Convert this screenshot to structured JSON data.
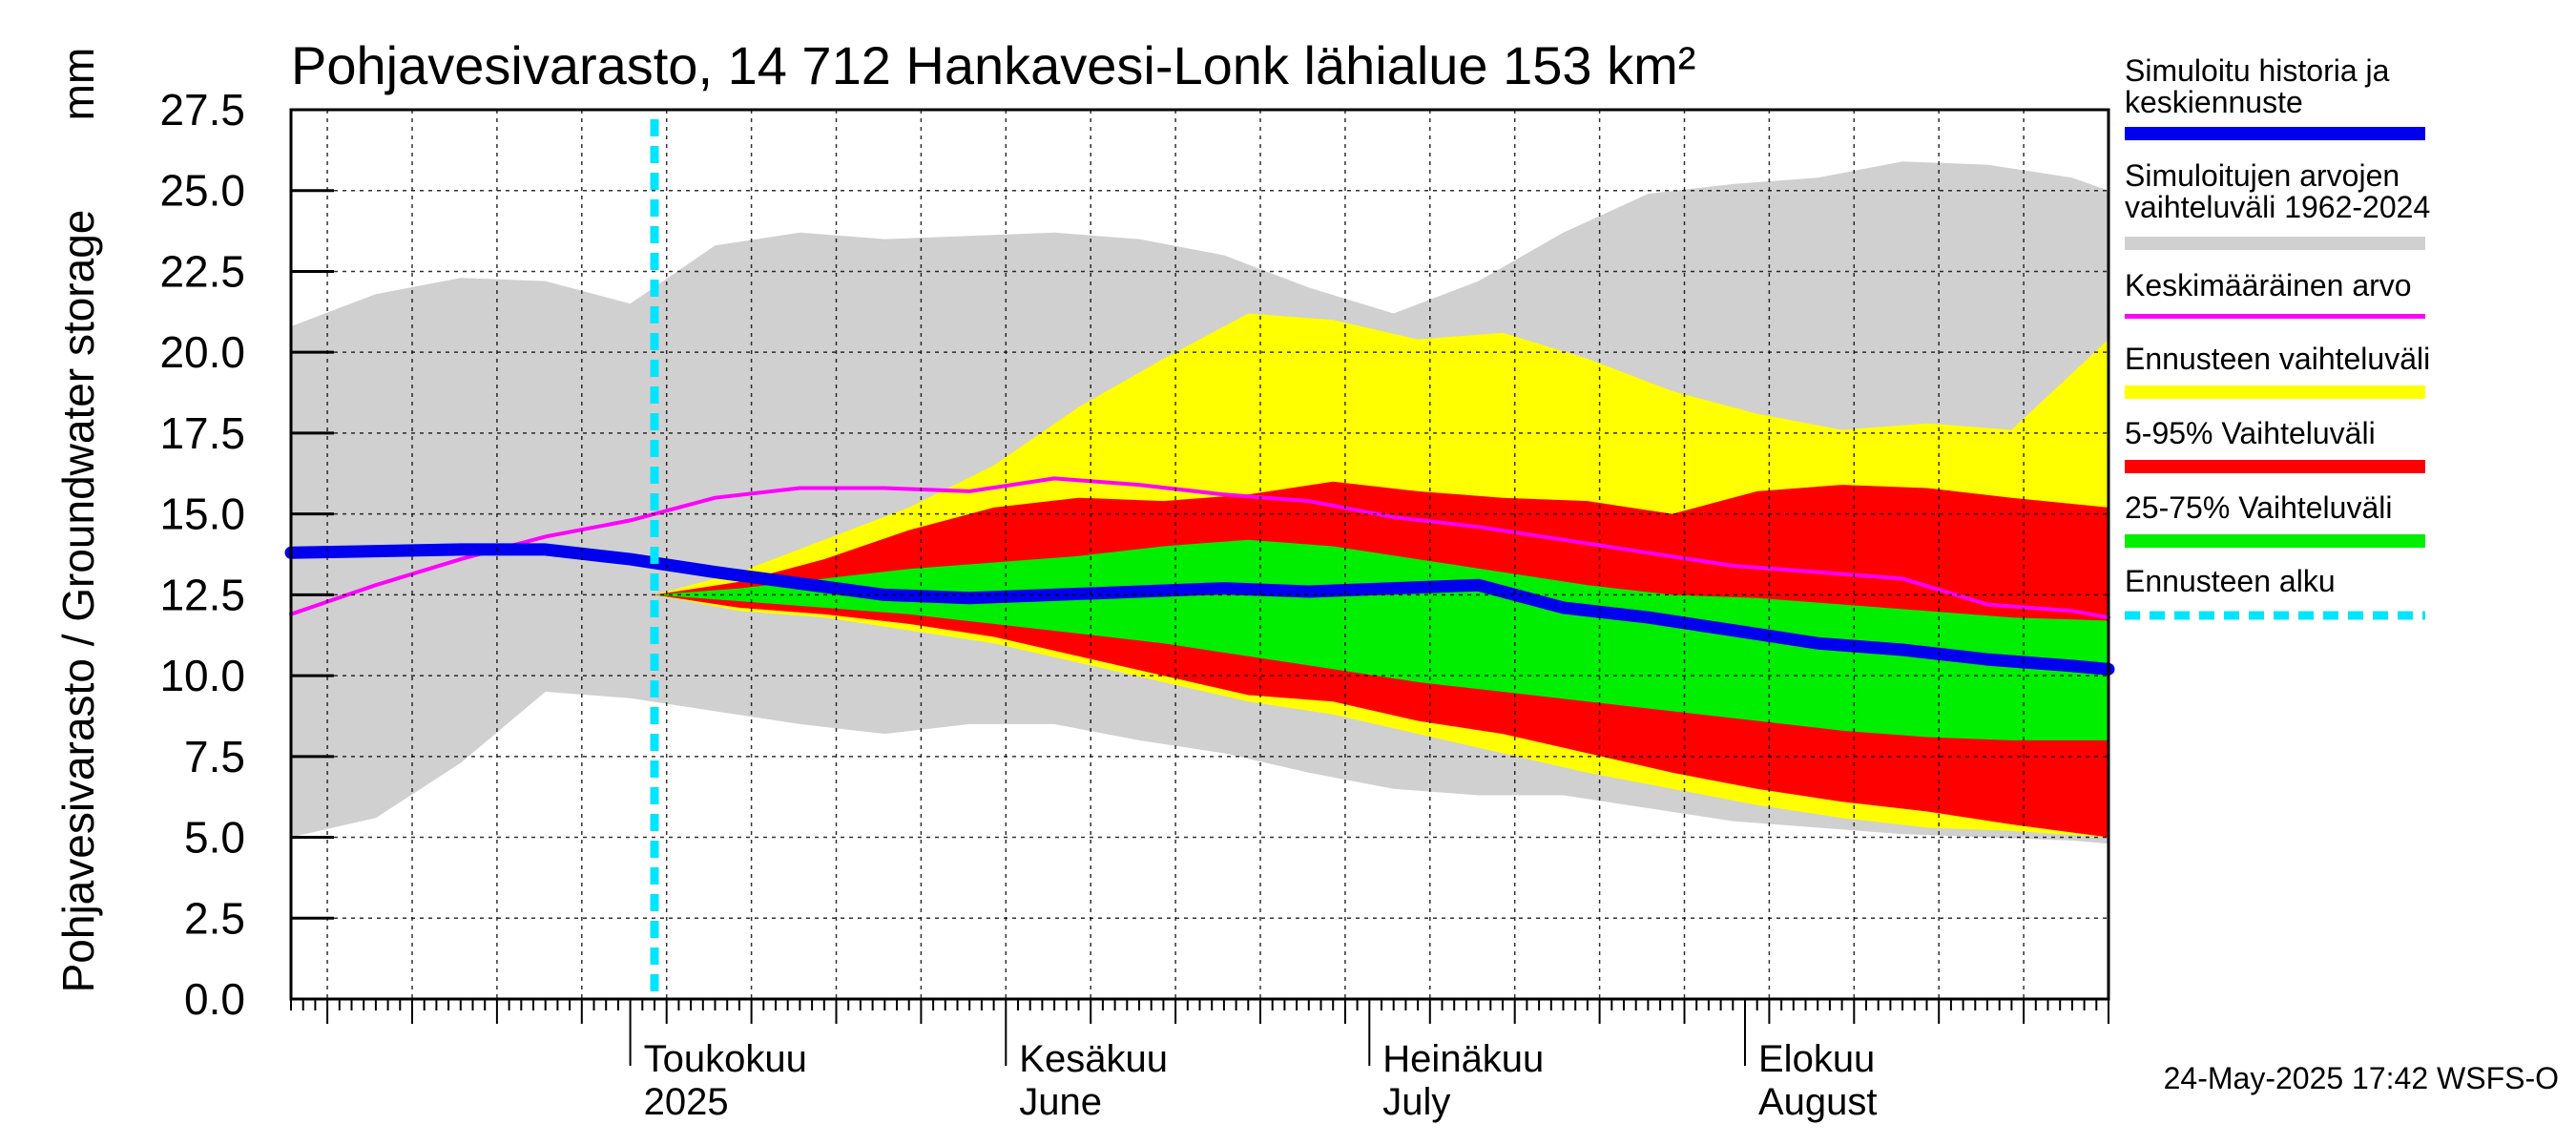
{
  "chart_data": {
    "type": "area",
    "title": "Pohjavesivarasto, 14 712 Hankavesi-Lonk lähialue 153 km²",
    "ylabel": "Pohjavesivarasto / Groundwater storage",
    "yunit": "mm",
    "ylim": [
      0,
      27.5
    ],
    "yticks": [
      "0.0",
      "2.5",
      "5.0",
      "7.5",
      "10.0",
      "12.5",
      "15.0",
      "17.5",
      "20.0",
      "22.5",
      "25.0",
      "27.5"
    ],
    "x_start": "2025-04-03",
    "x_end": "2025-08-31",
    "grid": true,
    "legend_position": "right",
    "month_labels": [
      {
        "date": "2025-05-01",
        "line1": "Toukokuu",
        "line2": "2025"
      },
      {
        "date": "2025-06-01",
        "line1": "Kesäkuu",
        "line2": "June"
      },
      {
        "date": "2025-07-01",
        "line1": "Heinäkuu",
        "line2": "July"
      },
      {
        "date": "2025-08-01",
        "line1": "Elokuu",
        "line2": "August"
      }
    ],
    "forecast_start": "2025-05-03",
    "series": [
      {
        "name": "Simuloitujen arvojen vaihteluväli 1962-2024",
        "color": "#d0d0d0",
        "x": [
          "2025-04-03",
          "2025-04-10",
          "2025-04-17",
          "2025-04-24",
          "2025-05-01",
          "2025-05-08",
          "2025-05-15",
          "2025-05-22",
          "2025-05-29",
          "2025-06-05",
          "2025-06-12",
          "2025-06-19",
          "2025-06-26",
          "2025-07-03",
          "2025-07-10",
          "2025-07-17",
          "2025-07-24",
          "2025-07-31",
          "2025-08-07",
          "2025-08-14",
          "2025-08-21",
          "2025-08-28",
          "2025-08-31"
        ],
        "upper": [
          20.8,
          21.8,
          22.3,
          22.2,
          21.5,
          23.3,
          23.7,
          23.5,
          23.6,
          23.7,
          23.5,
          23.0,
          22.0,
          21.2,
          22.2,
          23.7,
          24.9,
          25.2,
          25.4,
          25.9,
          25.8,
          25.4,
          25.0
        ],
        "lower": [
          5.0,
          5.6,
          7.3,
          9.5,
          9.3,
          8.9,
          8.5,
          8.2,
          8.5,
          8.5,
          8.0,
          7.6,
          7.0,
          6.5,
          6.3,
          6.3,
          5.9,
          5.5,
          5.3,
          5.1,
          5.0,
          4.9,
          4.8
        ]
      },
      {
        "name": "Ennusteen vaihteluväli",
        "color": "#ffff00",
        "x": [
          "2025-05-03",
          "2025-05-10",
          "2025-05-17",
          "2025-05-24",
          "2025-05-31",
          "2025-06-07",
          "2025-06-14",
          "2025-06-21",
          "2025-06-28",
          "2025-07-05",
          "2025-07-12",
          "2025-07-19",
          "2025-07-26",
          "2025-08-02",
          "2025-08-09",
          "2025-08-16",
          "2025-08-23",
          "2025-08-31"
        ],
        "upper": [
          12.5,
          13.2,
          14.2,
          15.2,
          16.5,
          18.3,
          19.8,
          21.2,
          21.0,
          20.4,
          20.6,
          19.8,
          18.8,
          18.1,
          17.6,
          17.8,
          17.6,
          20.4
        ],
        "lower": [
          12.5,
          12.0,
          11.8,
          11.4,
          11.0,
          10.4,
          9.8,
          9.2,
          8.8,
          8.2,
          7.6,
          7.0,
          6.5,
          6.0,
          5.6,
          5.3,
          5.2,
          5.0
        ]
      },
      {
        "name": "5-95% Vaihteluväli",
        "color": "#ff0000",
        "x": [
          "2025-05-03",
          "2025-05-10",
          "2025-05-17",
          "2025-05-24",
          "2025-05-31",
          "2025-06-07",
          "2025-06-14",
          "2025-06-21",
          "2025-06-28",
          "2025-07-05",
          "2025-07-12",
          "2025-07-19",
          "2025-07-26",
          "2025-08-02",
          "2025-08-09",
          "2025-08-16",
          "2025-08-23",
          "2025-08-31"
        ],
        "upper": [
          12.5,
          12.9,
          13.6,
          14.5,
          15.2,
          15.5,
          15.4,
          15.6,
          16.0,
          15.7,
          15.5,
          15.4,
          15.0,
          15.7,
          15.9,
          15.8,
          15.5,
          15.2
        ],
        "lower": [
          12.5,
          12.1,
          11.9,
          11.6,
          11.2,
          10.6,
          10.0,
          9.4,
          9.2,
          8.6,
          8.2,
          7.6,
          7.0,
          6.5,
          6.1,
          5.8,
          5.4,
          5.0
        ]
      },
      {
        "name": "25-75% Vaihteluväli",
        "color": "#00ee00",
        "x": [
          "2025-05-03",
          "2025-05-10",
          "2025-05-17",
          "2025-05-24",
          "2025-05-31",
          "2025-06-07",
          "2025-06-14",
          "2025-06-21",
          "2025-06-28",
          "2025-07-05",
          "2025-07-12",
          "2025-07-19",
          "2025-07-26",
          "2025-08-02",
          "2025-08-09",
          "2025-08-16",
          "2025-08-23",
          "2025-08-31"
        ],
        "upper": [
          12.5,
          12.7,
          13.0,
          13.3,
          13.5,
          13.7,
          14.0,
          14.2,
          14.0,
          13.6,
          13.2,
          12.8,
          12.5,
          12.4,
          12.2,
          12.0,
          11.8,
          11.7
        ],
        "lower": [
          12.5,
          12.3,
          12.1,
          11.9,
          11.6,
          11.3,
          11.0,
          10.6,
          10.2,
          9.8,
          9.5,
          9.2,
          8.9,
          8.6,
          8.3,
          8.1,
          8.0,
          8.0
        ]
      },
      {
        "name": "Keskimääräinen arvo",
        "color": "#ff00ff",
        "x": [
          "2025-04-03",
          "2025-04-10",
          "2025-04-17",
          "2025-04-24",
          "2025-05-01",
          "2025-05-08",
          "2025-05-15",
          "2025-05-22",
          "2025-05-29",
          "2025-06-05",
          "2025-06-12",
          "2025-06-19",
          "2025-06-26",
          "2025-07-03",
          "2025-07-10",
          "2025-07-17",
          "2025-07-24",
          "2025-07-31",
          "2025-08-07",
          "2025-08-14",
          "2025-08-21",
          "2025-08-28",
          "2025-08-31"
        ],
        "values": [
          11.9,
          12.8,
          13.6,
          14.3,
          14.8,
          15.5,
          15.8,
          15.8,
          15.7,
          16.1,
          15.9,
          15.6,
          15.4,
          14.9,
          14.6,
          14.2,
          13.8,
          13.4,
          13.2,
          13.0,
          12.2,
          12.0,
          11.8
        ]
      },
      {
        "name": "Simuloitu historia ja keskiennuste",
        "color": "#0000ee",
        "x": [
          "2025-04-03",
          "2025-04-10",
          "2025-04-17",
          "2025-04-24",
          "2025-05-01",
          "2025-05-08",
          "2025-05-15",
          "2025-05-22",
          "2025-05-29",
          "2025-06-05",
          "2025-06-12",
          "2025-06-19",
          "2025-06-26",
          "2025-07-03",
          "2025-07-10",
          "2025-07-17",
          "2025-07-24",
          "2025-07-31",
          "2025-08-07",
          "2025-08-14",
          "2025-08-21",
          "2025-08-28",
          "2025-08-31"
        ],
        "values": [
          13.8,
          13.85,
          13.9,
          13.9,
          13.6,
          13.2,
          12.85,
          12.5,
          12.4,
          12.5,
          12.6,
          12.7,
          12.6,
          12.7,
          12.8,
          12.1,
          11.8,
          11.4,
          11.0,
          10.8,
          10.5,
          10.3,
          10.2
        ]
      }
    ],
    "legend": [
      {
        "label": "Simuloitu historia ja keskiennuste",
        "color": "#0000ee"
      },
      {
        "label": "Simuloitujen arvojen vaihteluväli 1962-2024",
        "color": "#d0d0d0"
      },
      {
        "label": "Keskimääräinen arvo",
        "color": "#ff00ff"
      },
      {
        "label": "Ennusteen vaihteluväli",
        "color": "#ffff00"
      },
      {
        "label": "5-95% Vaihteluväli",
        "color": "#ff0000"
      },
      {
        "label": "25-75% Vaihteluväli",
        "color": "#00ee00"
      },
      {
        "label": "Ennusteen alku",
        "color": "#00e5ff"
      }
    ]
  },
  "legend_labels": {
    "history_line1": "Simuloitu historia ja",
    "history_line2": "keskiennuste",
    "range_line1": "Simuloitujen arvojen",
    "range_line2": "vaihteluväli 1962-2024",
    "mean": "Keskimääräinen arvo",
    "forecast_range": "Ennusteen vaihteluväli",
    "p5_95": "5-95% Vaihteluväli",
    "p25_75": "25-75% Vaihteluväli",
    "forecast_start": "Ennusteen alku"
  },
  "timestamp": "24-May-2025 17:42 WSFS-O"
}
